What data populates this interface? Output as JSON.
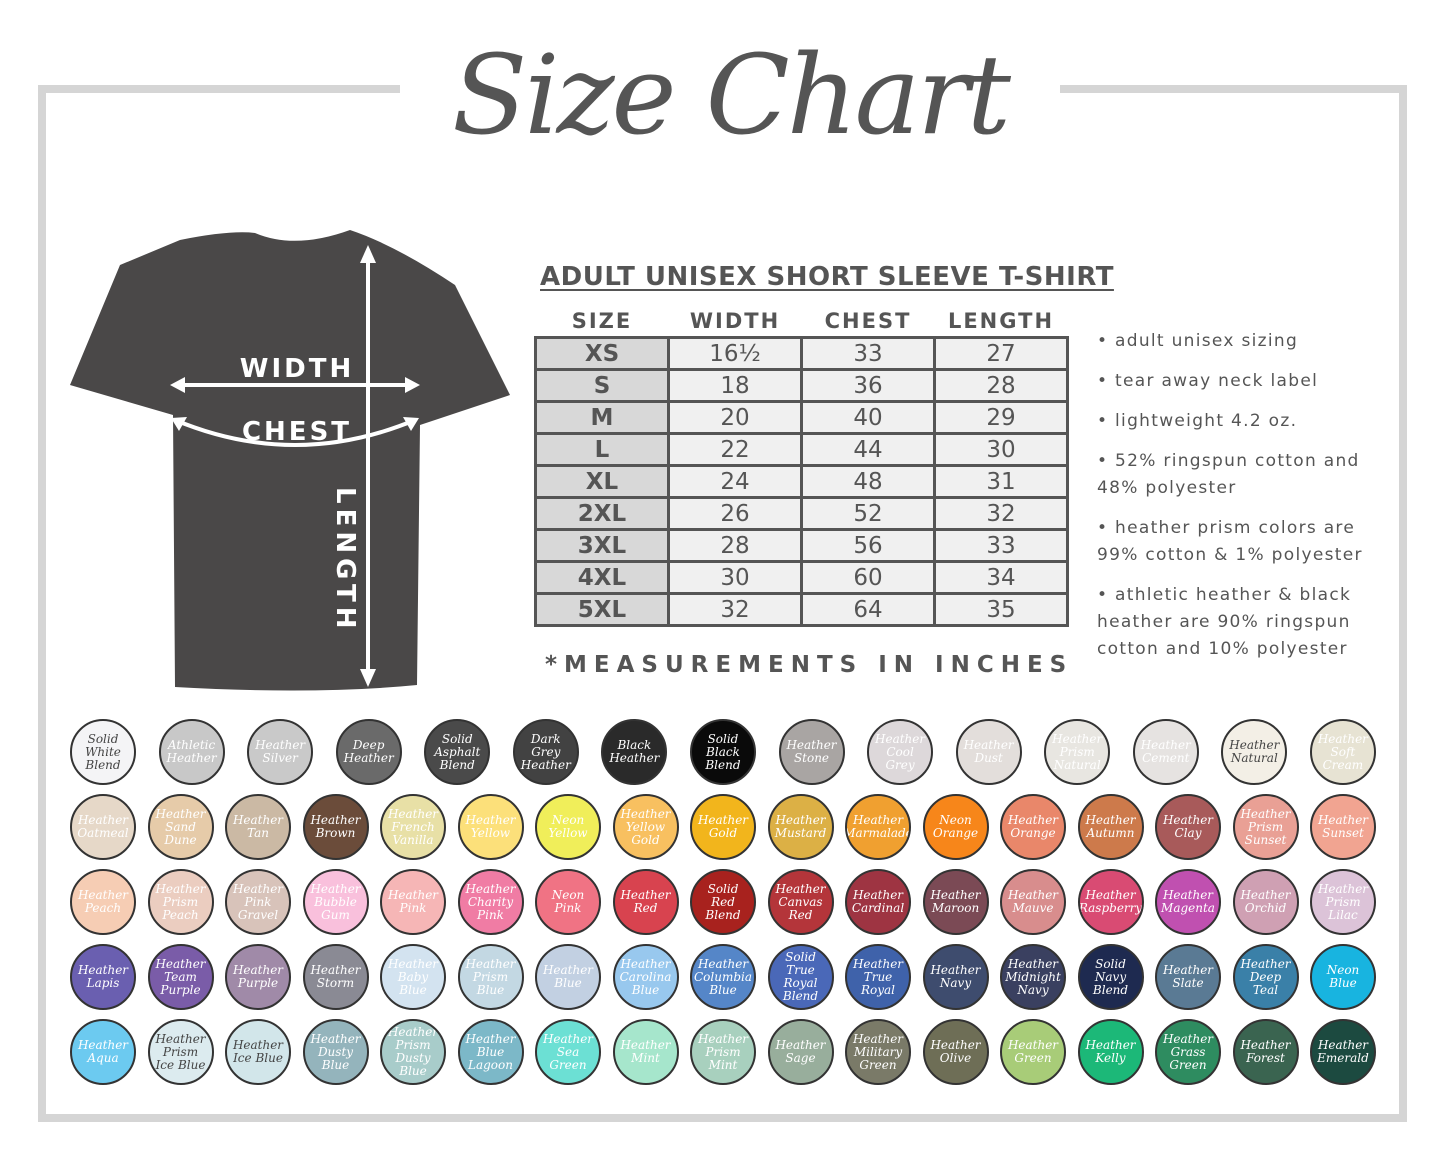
{
  "title": "Size Chart",
  "shirt": {
    "width_label": "WIDTH",
    "chest_label": "CHEST",
    "length_label": "LENGTH",
    "color": "#4a4848"
  },
  "table": {
    "title": "ADULT UNISEX SHORT SLEEVE T-SHIRT",
    "headers": [
      "SIZE",
      "WIDTH",
      "CHEST",
      "LENGTH"
    ],
    "rows": [
      [
        "XS",
        "16½",
        "33",
        "27"
      ],
      [
        "S",
        "18",
        "36",
        "28"
      ],
      [
        "M",
        "20",
        "40",
        "29"
      ],
      [
        "L",
        "22",
        "44",
        "30"
      ],
      [
        "XL",
        "24",
        "48",
        "31"
      ],
      [
        "2XL",
        "26",
        "52",
        "32"
      ],
      [
        "3XL",
        "28",
        "56",
        "33"
      ],
      [
        "4XL",
        "30",
        "60",
        "34"
      ],
      [
        "5XL",
        "32",
        "64",
        "35"
      ]
    ],
    "note": "*MEASUREMENTS IN INCHES"
  },
  "features": [
    "• adult unisex sizing",
    "• tear away neck label",
    "• lightweight 4.2 oz.",
    "• 52% ringspun cotton and 48% polyester",
    "• heather prism colors are 99% cotton & 1% polyester",
    "• athletic heather & black heather are 90% ringspun cotton and 10% polyester"
  ],
  "swatch_rows": [
    [
      [
        "Solid White Blend",
        "#f4f4f6",
        1
      ],
      [
        "Athletic Heather",
        "#c8c8c8"
      ],
      [
        "Heather Silver",
        "#c9c9c9"
      ],
      [
        "Deep Heather",
        "#6a6a6a"
      ],
      [
        "Solid Asphalt Blend",
        "#4a4a4a"
      ],
      [
        "Dark Grey Heather",
        "#424242"
      ],
      [
        "Black Heather",
        "#2a2a2a"
      ],
      [
        "Solid Black Blend",
        "#0a0a0a"
      ],
      [
        "Heather Stone",
        "#a9a5a3"
      ],
      [
        "Heather Cool Grey",
        "#ddd8da"
      ],
      [
        "Heather Dust",
        "#e3dedb"
      ],
      [
        "Heather Prism Natural",
        "#e8e6e1"
      ],
      [
        "Heather Cement",
        "#e6e3e1"
      ],
      [
        "Heather Natural",
        "#f3efe6",
        1
      ],
      [
        "Heather Soft Cream",
        "#e7e3d3"
      ]
    ],
    [
      [
        "Heather Oatmeal",
        "#e6d8c8"
      ],
      [
        "Heather Sand Dune",
        "#e6cba9"
      ],
      [
        "Heather Tan",
        "#cbb9a4"
      ],
      [
        "Heather Brown",
        "#6b4c3a"
      ],
      [
        "Heather French Vanilla",
        "#e8e0a6"
      ],
      [
        "Heather Yellow",
        "#fce07a"
      ],
      [
        "Neon Yellow",
        "#f0ee5a"
      ],
      [
        "Heather Yellow Gold",
        "#f8c060"
      ],
      [
        "Heather Gold",
        "#f2b51c"
      ],
      [
        "Heather Mustard",
        "#dcb045"
      ],
      [
        "Heather Marmalade",
        "#f0a030"
      ],
      [
        "Neon Orange",
        "#f7861a"
      ],
      [
        "Heather Orange",
        "#e9876a"
      ],
      [
        "Heather Autumn",
        "#cd7a4b"
      ],
      [
        "Heather Clay",
        "#a85a5a"
      ],
      [
        "Heather Prism Sunset",
        "#e9a095"
      ],
      [
        "Heather Sunset",
        "#f1a491"
      ]
    ],
    [
      [
        "Heather Peach",
        "#f6cdb4"
      ],
      [
        "Heather Prism Peach",
        "#ebcdc0"
      ],
      [
        "Heather Pink Gravel",
        "#d8c3ba"
      ],
      [
        "Heather Bubble Gum",
        "#f9c0dc"
      ],
      [
        "Heather Pink",
        "#f6b6b6"
      ],
      [
        "Heather Charity Pink",
        "#f07ca4"
      ],
      [
        "Neon Pink",
        "#f07384"
      ],
      [
        "Heather Red",
        "#d8434f"
      ],
      [
        "Solid Red Blend",
        "#a8221e"
      ],
      [
        "Heather Canvas Red",
        "#b4353a"
      ],
      [
        "Heather Cardinal",
        "#9e3442"
      ],
      [
        "Heather Maroon",
        "#7b4a55"
      ],
      [
        "Heather Mauve",
        "#d88d8d"
      ],
      [
        "Heather Raspberry",
        "#d94b73"
      ],
      [
        "Heather Magenta",
        "#c050b0"
      ],
      [
        "Heather Orchid",
        "#cfa0b3"
      ],
      [
        "Heather Prism Lilac",
        "#dcc3d8"
      ]
    ],
    [
      [
        "Heather Lapis",
        "#6a5fb0"
      ],
      [
        "Heather Team Purple",
        "#7a5ca8"
      ],
      [
        "Heather Purple",
        "#a08aa8"
      ],
      [
        "Heather Storm",
        "#8a8a94"
      ],
      [
        "Heather Baby Blue",
        "#d3e3f0"
      ],
      [
        "Heather Prism Blue",
        "#c3d8e3"
      ],
      [
        "Heather Blue",
        "#c2d0e2"
      ],
      [
        "Heather Carolina Blue",
        "#98c8ee"
      ],
      [
        "Heather Columbia Blue",
        "#5586c8"
      ],
      [
        "Solid True Royal Blend",
        "#4a68b8"
      ],
      [
        "Heather True Royal",
        "#3f62aa"
      ],
      [
        "Heather Navy",
        "#3e4c6e"
      ],
      [
        "Heather Midnight Navy",
        "#3a4060"
      ],
      [
        "Solid Navy Blend",
        "#1e2a50"
      ],
      [
        "Heather Slate",
        "#5a7a94"
      ],
      [
        "Heather Deep Teal",
        "#3a80a8"
      ],
      [
        "Neon Blue",
        "#18b4e0"
      ]
    ],
    [
      [
        "Heather Aqua",
        "#6ccaf0"
      ],
      [
        "Heather Prism Ice Blue",
        "#dcebef",
        1
      ],
      [
        "Heather Ice Blue",
        "#d2e6ea",
        1
      ],
      [
        "Heather Dusty Blue",
        "#94b4bc"
      ],
      [
        "Heather Prism Dusty Blue",
        "#a8ccca"
      ],
      [
        "Heather Blue Lagoon",
        "#7cb8c8"
      ],
      [
        "Heather Sea Green",
        "#6ce0d4"
      ],
      [
        "Heather Mint",
        "#a6e6cc"
      ],
      [
        "Heather Prism Mint",
        "#a8d0be"
      ],
      [
        "Heather Sage",
        "#98ae9c"
      ],
      [
        "Heather Military Green",
        "#7a7a68"
      ],
      [
        "Heather Olive",
        "#6e6e56"
      ],
      [
        "Heather Green",
        "#a8cc78"
      ],
      [
        "Heather Kelly",
        "#1cb878"
      ],
      [
        "Heather Grass Green",
        "#2e8c60"
      ],
      [
        "Heather Forest",
        "#3a6450"
      ],
      [
        "Heather Emerald",
        "#1c4a40"
      ]
    ]
  ]
}
